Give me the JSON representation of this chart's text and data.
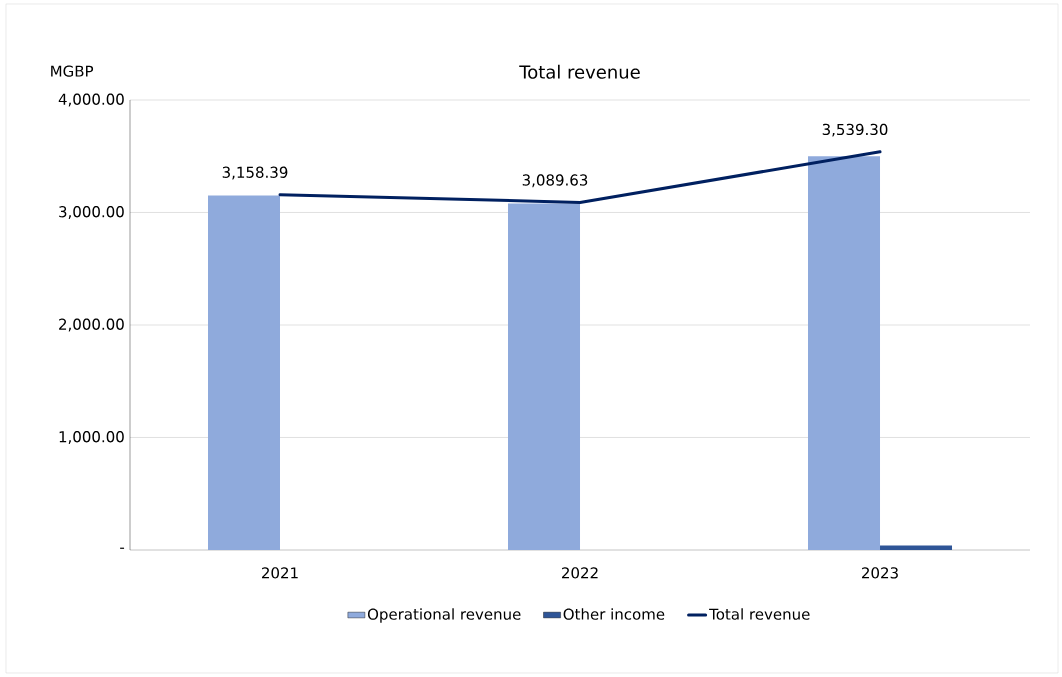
{
  "chart_data": {
    "type": "bar",
    "title": "Total revenue",
    "ylabel": "MGBP",
    "categories": [
      "2021",
      "2022",
      "2023"
    ],
    "series": [
      {
        "name": "Operational revenue",
        "color": "#8faadc",
        "values": [
          3150,
          3080,
          3500
        ]
      },
      {
        "name": "Other income",
        "color": "#2f5597",
        "values": [
          0,
          0,
          40
        ]
      },
      {
        "name": "Total revenue",
        "type": "line",
        "color": "#002060",
        "values": [
          3158.39,
          3089.63,
          3539.3
        ],
        "value_labels": [
          "3,158.39",
          "3,089.63",
          "3,539.30"
        ]
      }
    ],
    "ylim": [
      0,
      4000
    ],
    "yticks": [
      {
        "value": 0,
        "label": "-"
      },
      {
        "value": 1000,
        "label": "1,000.00"
      },
      {
        "value": 2000,
        "label": "2,000.00"
      },
      {
        "value": 3000,
        "label": "3,000.00"
      },
      {
        "value": 4000,
        "label": "4,000.00"
      }
    ],
    "grid": "y",
    "legend": "bottom",
    "marker": "none"
  }
}
